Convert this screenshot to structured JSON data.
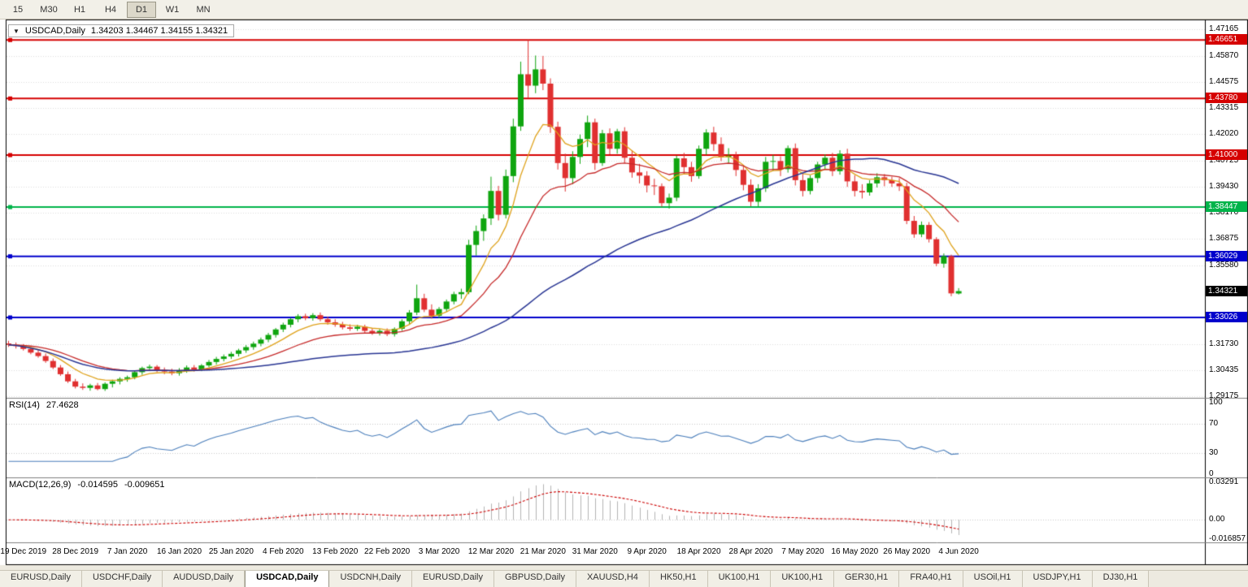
{
  "toolbar": {
    "timeframes": [
      "15",
      "M30",
      "H1",
      "H4",
      "D1",
      "W1",
      "MN"
    ],
    "active": "D1"
  },
  "chart_header": {
    "dropdown_icon": "▼",
    "symbol": "USDCAD,Daily",
    "ohlc": "1.34203 1.34467 1.34155 1.34321"
  },
  "colors": {
    "bull": "#0FA50F",
    "bear": "#E03030",
    "ma_fast": "#DFA21B",
    "ma_mid": "#C62828",
    "ma_slow": "#283593",
    "rsi_line": "#4A7EBB",
    "macd_hist": "#B4B4B4",
    "macd_signal": "#CC0000",
    "grid": "#DCDCDC",
    "pane_sep": "#808080",
    "current_badge_bg": "#000000"
  },
  "price_axis": {
    "ticks": [
      "1.47165",
      "1.45870",
      "1.44575",
      "1.43315",
      "1.42020",
      "1.40725",
      "1.39430",
      "1.38170",
      "1.36875",
      "1.35580",
      "1.31730",
      "1.30435",
      "1.29175"
    ]
  },
  "current_price": {
    "label": "1.34321",
    "price": 1.34321
  },
  "date_axis": {
    "labels": [
      "19 Dec 2019",
      "28 Dec 2019",
      "7 Jan 2020",
      "16 Jan 2020",
      "25 Jan 2020",
      "4 Feb 2020",
      "13 Feb 2020",
      "22 Feb 2020",
      "3 Mar 2020",
      "12 Mar 2020",
      "21 Mar 2020",
      "31 Mar 2020",
      "9 Apr 2020",
      "18 Apr 2020",
      "28 Apr 2020",
      "7 May 2020",
      "16 May 2020",
      "26 May 2020",
      "4 Jun 2020"
    ],
    "first_bar": 2,
    "bar_step": 7
  },
  "rsi": {
    "label": "RSI(14)",
    "value": "27.4628",
    "period": 14,
    "axis_labels": [
      "100",
      "70",
      "30",
      "0"
    ],
    "levels": [
      70,
      30
    ]
  },
  "macd": {
    "label": "MACD(12,26,9)",
    "main_value": "-0.014595",
    "signal_value": "-0.009651",
    "axis_labels": [
      "0.03291",
      "0.00",
      "-0.016857"
    ],
    "max": 0.03291,
    "min": -0.016857,
    "fast": 12,
    "slow": 26,
    "signal": 9
  },
  "tabs": {
    "items": [
      "EURUSD,Daily",
      "USDCHF,Daily",
      "AUDUSD,Daily",
      "USDCAD,Daily",
      "USDCNH,Daily",
      "EURUSD,Daily",
      "GBPUSD,Daily",
      "XAUUSD,H4",
      "HK50,H1",
      "UK100,H1",
      "UK100,H1",
      "GER30,H1",
      "FRA40,H1",
      "USOil,H1",
      "USDJPY,H1",
      "DJ30,H1"
    ],
    "active_index": 3
  },
  "chart_data": {
    "type": "candlestick",
    "symbol": "USDCAD",
    "timeframe": "Daily",
    "y_range": {
      "max": 1.4758,
      "min": 1.2912
    },
    "horizontal_levels": [
      {
        "price": 1.46651,
        "label": "1.46651",
        "color": "#D60000"
      },
      {
        "price": 1.4378,
        "label": "1.43780",
        "color": "#D60000"
      },
      {
        "price": 1.41,
        "label": "1.41000",
        "color": "#D60000"
      },
      {
        "price": 1.38447,
        "label": "1.38447",
        "color": "#00B44A"
      },
      {
        "price": 1.36029,
        "label": "1.36029",
        "color": "#0000CC"
      },
      {
        "price": 1.33026,
        "label": "1.33026",
        "color": "#0000CC"
      }
    ],
    "moving_averages": [
      {
        "type": "ema",
        "period": 8,
        "color": "#DFA21B"
      },
      {
        "type": "ema",
        "period": 20,
        "color": "#C62828"
      },
      {
        "type": "sma",
        "period": 50,
        "color": "#283593"
      }
    ],
    "candles": [
      [
        1.3175,
        1.3188,
        1.3158,
        1.3168
      ],
      [
        1.3168,
        1.318,
        1.315,
        1.3162
      ],
      [
        1.3162,
        1.3172,
        1.314,
        1.3148
      ],
      [
        1.3148,
        1.3158,
        1.3122,
        1.313
      ],
      [
        1.313,
        1.3144,
        1.3105,
        1.3113
      ],
      [
        1.3113,
        1.3126,
        1.308,
        1.3089
      ],
      [
        1.3089,
        1.3101,
        1.3049,
        1.3057
      ],
      [
        1.3057,
        1.3069,
        1.3016,
        1.3024
      ],
      [
        1.3024,
        1.3037,
        1.2981,
        1.2989
      ],
      [
        1.2989,
        1.3001,
        1.2954,
        1.2963
      ],
      [
        1.2963,
        1.2979,
        1.2947,
        1.2957
      ],
      [
        1.2957,
        1.2977,
        1.2943,
        1.2969
      ],
      [
        1.2969,
        1.2981,
        1.2945,
        1.2951
      ],
      [
        1.2951,
        1.2984,
        1.2942,
        1.2977
      ],
      [
        1.2977,
        1.2997,
        1.2959,
        1.2989
      ],
      [
        1.2989,
        1.3009,
        1.2974,
        1.3001
      ],
      [
        1.3001,
        1.3017,
        1.2987,
        1.3009
      ],
      [
        1.3009,
        1.3041,
        1.2999,
        1.3034
      ],
      [
        1.3034,
        1.3061,
        1.3021,
        1.3054
      ],
      [
        1.3054,
        1.3071,
        1.3039,
        1.3061
      ],
      [
        1.3061,
        1.3069,
        1.3034,
        1.3044
      ],
      [
        1.3044,
        1.3057,
        1.3024,
        1.3037
      ],
      [
        1.3037,
        1.3051,
        1.3019,
        1.3029
      ],
      [
        1.3029,
        1.3054,
        1.3017,
        1.3044
      ],
      [
        1.3044,
        1.3067,
        1.3031,
        1.3057
      ],
      [
        1.3057,
        1.3069,
        1.3037,
        1.3047
      ],
      [
        1.3047,
        1.3074,
        1.3039,
        1.3067
      ],
      [
        1.3067,
        1.3094,
        1.3057,
        1.3084
      ],
      [
        1.3084,
        1.3109,
        1.3071,
        1.3099
      ],
      [
        1.3099,
        1.3121,
        1.3087,
        1.3111
      ],
      [
        1.3111,
        1.3134,
        1.3099,
        1.3124
      ],
      [
        1.3124,
        1.3149,
        1.3111,
        1.3141
      ],
      [
        1.3141,
        1.3167,
        1.3129,
        1.3157
      ],
      [
        1.3157,
        1.3184,
        1.3144,
        1.3174
      ],
      [
        1.3174,
        1.3204,
        1.3161,
        1.3194
      ],
      [
        1.3194,
        1.3227,
        1.3181,
        1.3217
      ],
      [
        1.3217,
        1.3251,
        1.3204,
        1.3244
      ],
      [
        1.3244,
        1.3277,
        1.3231,
        1.3267
      ],
      [
        1.3267,
        1.3301,
        1.3254,
        1.3294
      ],
      [
        1.3294,
        1.3319,
        1.3279,
        1.3309
      ],
      [
        1.3309,
        1.3321,
        1.3289,
        1.3299
      ],
      [
        1.3299,
        1.3324,
        1.3287,
        1.3314
      ],
      [
        1.3314,
        1.3327,
        1.3284,
        1.3294
      ],
      [
        1.3294,
        1.3307,
        1.3267,
        1.3279
      ],
      [
        1.3279,
        1.3294,
        1.3257,
        1.3267
      ],
      [
        1.3267,
        1.3281,
        1.3244,
        1.3254
      ],
      [
        1.3254,
        1.3269,
        1.3237,
        1.3247
      ],
      [
        1.3247,
        1.3267,
        1.3237,
        1.3257
      ],
      [
        1.3257,
        1.3267,
        1.3227,
        1.3237
      ],
      [
        1.3237,
        1.3251,
        1.3217,
        1.3227
      ],
      [
        1.3227,
        1.3247,
        1.3214,
        1.3237
      ],
      [
        1.3237,
        1.3249,
        1.3211,
        1.3221
      ],
      [
        1.3221,
        1.3254,
        1.3209,
        1.3247
      ],
      [
        1.3247,
        1.3294,
        1.3237,
        1.3284
      ],
      [
        1.3284,
        1.3339,
        1.3271,
        1.3327
      ],
      [
        1.3327,
        1.3464,
        1.3314,
        1.3397
      ],
      [
        1.3397,
        1.3419,
        1.3329,
        1.3341
      ],
      [
        1.3341,
        1.3367,
        1.3297,
        1.3311
      ],
      [
        1.3311,
        1.3354,
        1.3299,
        1.3344
      ],
      [
        1.3344,
        1.3391,
        1.3331,
        1.3381
      ],
      [
        1.3381,
        1.3429,
        1.3367,
        1.3417
      ],
      [
        1.3417,
        1.3444,
        1.3394,
        1.3427
      ],
      [
        1.3427,
        1.3684,
        1.3417,
        1.3659
      ],
      [
        1.3659,
        1.3754,
        1.3607,
        1.3727
      ],
      [
        1.3727,
        1.3809,
        1.3679,
        1.3789
      ],
      [
        1.3789,
        1.3994,
        1.3757,
        1.3924
      ],
      [
        1.3924,
        1.3949,
        1.3779,
        1.3807
      ],
      [
        1.3807,
        1.4029,
        1.3789,
        1.3997
      ],
      [
        1.3997,
        1.4279,
        1.3967,
        1.4241
      ],
      [
        1.4241,
        1.4559,
        1.4219,
        1.4497
      ],
      [
        1.4497,
        1.46651,
        1.4379,
        1.4441
      ],
      [
        1.4441,
        1.4589,
        1.4404,
        1.4521
      ],
      [
        1.4521,
        1.4587,
        1.4419,
        1.4451
      ],
      [
        1.4451,
        1.4477,
        1.4209,
        1.4239
      ],
      [
        1.4239,
        1.4264,
        1.4029,
        1.4061
      ],
      [
        1.4061,
        1.4107,
        1.3921,
        1.3987
      ],
      [
        1.3987,
        1.4119,
        1.3957,
        1.4091
      ],
      [
        1.4091,
        1.4201,
        1.4057,
        1.4179
      ],
      [
        1.4179,
        1.4294,
        1.4139,
        1.4261
      ],
      [
        1.4261,
        1.4279,
        1.4027,
        1.4061
      ],
      [
        1.4061,
        1.4224,
        1.4047,
        1.4207
      ],
      [
        1.4207,
        1.4231,
        1.4104,
        1.4131
      ],
      [
        1.4131,
        1.4229,
        1.4107,
        1.4217
      ],
      [
        1.4217,
        1.4237,
        1.4061,
        1.4087
      ],
      [
        1.4087,
        1.4124,
        1.3989,
        1.4015
      ],
      [
        1.4015,
        1.4057,
        1.3961,
        1.3999
      ],
      [
        1.3999,
        1.4021,
        1.3917,
        1.3951
      ],
      [
        1.3951,
        1.3984,
        1.3904,
        1.3947
      ],
      [
        1.3947,
        1.3961,
        1.3847,
        1.3864
      ],
      [
        1.3864,
        1.3911,
        1.3837,
        1.3891
      ],
      [
        1.3891,
        1.4097,
        1.3874,
        1.4084
      ],
      [
        1.4084,
        1.4111,
        1.4007,
        1.4041
      ],
      [
        1.4041,
        1.4067,
        1.3969,
        1.3997
      ],
      [
        1.3997,
        1.4147,
        1.3984,
        1.4131
      ],
      [
        1.4131,
        1.4227,
        1.4101,
        1.4211
      ],
      [
        1.4211,
        1.4239,
        1.4121,
        1.4154
      ],
      [
        1.4154,
        1.4187,
        1.4071,
        1.4091
      ],
      [
        1.4091,
        1.4134,
        1.4057,
        1.4097
      ],
      [
        1.4097,
        1.4117,
        1.3997,
        1.4027
      ],
      [
        1.4027,
        1.4051,
        1.3927,
        1.3954
      ],
      [
        1.3954,
        1.3981,
        1.3849,
        1.3871
      ],
      [
        1.3871,
        1.3957,
        1.3847,
        1.3937
      ],
      [
        1.3937,
        1.4091,
        1.3919,
        1.4067
      ],
      [
        1.4067,
        1.4101,
        1.4021,
        1.4071
      ],
      [
        1.4071,
        1.4094,
        1.3997,
        1.4031
      ],
      [
        1.4031,
        1.4147,
        1.4014,
        1.4134
      ],
      [
        1.4134,
        1.4157,
        1.3951,
        1.3977
      ],
      [
        1.3977,
        1.4011,
        1.3897,
        1.3924
      ],
      [
        1.3924,
        1.4001,
        1.3907,
        1.3987
      ],
      [
        1.3987,
        1.4067,
        1.3964,
        1.4054
      ],
      [
        1.4054,
        1.4104,
        1.4031,
        1.4087
      ],
      [
        1.4087,
        1.4111,
        1.3997,
        1.4021
      ],
      [
        1.4021,
        1.4124,
        1.4004,
        1.4107
      ],
      [
        1.4107,
        1.4131,
        1.3944,
        1.3971
      ],
      [
        1.3971,
        1.4001,
        1.3897,
        1.3924
      ],
      [
        1.3924,
        1.3957,
        1.3887,
        1.3917
      ],
      [
        1.3917,
        1.3977,
        1.3901,
        1.3961
      ],
      [
        1.3961,
        1.4011,
        1.3941,
        1.3991
      ],
      [
        1.3991,
        1.4007,
        1.3947,
        1.3977
      ],
      [
        1.3977,
        1.3994,
        1.3944,
        1.3961
      ],
      [
        1.3961,
        1.3987,
        1.3924,
        1.3947
      ],
      [
        1.3947,
        1.3964,
        1.3761,
        1.3777
      ],
      [
        1.3777,
        1.3801,
        1.3694,
        1.3711
      ],
      [
        1.3711,
        1.3774,
        1.3697,
        1.3757
      ],
      [
        1.3757,
        1.3771,
        1.3671,
        1.3687
      ],
      [
        1.3687,
        1.3697,
        1.3554,
        1.3567
      ],
      [
        1.3567,
        1.3617,
        1.3547,
        1.3604
      ],
      [
        1.3604,
        1.3611,
        1.3407,
        1.3421
      ],
      [
        1.34203,
        1.34467,
        1.34155,
        1.34321
      ]
    ]
  }
}
